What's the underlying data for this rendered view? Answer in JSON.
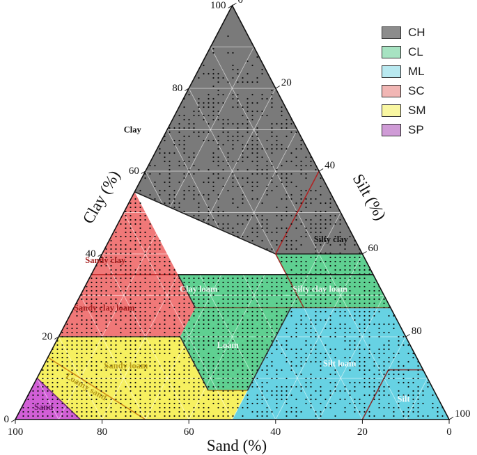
{
  "chart_data": {
    "type": "ternary",
    "axes": {
      "bottom": {
        "label": "Sand (%)",
        "ticks": [
          "100",
          "80",
          "60",
          "40",
          "20",
          "0"
        ]
      },
      "left": {
        "label": "Clay (%)",
        "ticks": [
          "0",
          "20",
          "40",
          "60",
          "80",
          "100"
        ]
      },
      "right": {
        "label": "Silt (%)",
        "ticks": [
          "0",
          "20",
          "40",
          "60",
          "80",
          "100"
        ]
      }
    },
    "grid": true,
    "legend_position": "top-right",
    "legend": [
      {
        "label": "CH",
        "color": "#8c8c8c"
      },
      {
        "label": "CL",
        "color": "#a7e3c2"
      },
      {
        "label": "ML",
        "color": "#b9e9f0"
      },
      {
        "label": "SC",
        "color": "#f1b6b4"
      },
      {
        "label": "SM",
        "color": "#f9f7a2"
      },
      {
        "label": "SP",
        "color": "#cf9bd6"
      }
    ],
    "regions": [
      {
        "name": "Clay",
        "group": "CH",
        "color": "#7a7a7a",
        "vertices": [
          [
            0,
            100,
            0
          ],
          [
            45,
            55,
            0
          ],
          [
            20,
            40,
            40
          ],
          [
            0,
            60,
            40
          ]
        ]
      },
      {
        "name": "Silty clay",
        "group": "CH",
        "color": "#7a7a7a",
        "vertices": [
          [
            0,
            60,
            40
          ],
          [
            20,
            40,
            40
          ],
          [
            0,
            40,
            60
          ]
        ]
      },
      {
        "name": "Sandy clay",
        "group": "SC",
        "color": "#f07878",
        "vertices": [
          [
            45,
            55,
            0
          ],
          [
            65,
            35,
            0
          ],
          [
            45,
            35,
            20
          ]
        ]
      },
      {
        "name": "Sandy clay loam",
        "group": "SC",
        "color": "#f07878",
        "vertices": [
          [
            65,
            35,
            0
          ],
          [
            80,
            20,
            0
          ],
          [
            52,
            20,
            28
          ],
          [
            45,
            27,
            28
          ],
          [
            45,
            35,
            20
          ]
        ]
      },
      {
        "name": "Clay loam",
        "group": "CL",
        "color": "#5fd091",
        "vertices": [
          [
            45,
            35,
            20
          ],
          [
            45,
            27,
            28
          ],
          [
            20,
            27,
            53
          ],
          [
            20,
            35,
            45
          ]
        ]
      },
      {
        "name": "Silty clay loam",
        "group": "CL",
        "color": "#5fd091",
        "vertices": [
          [
            20,
            35,
            45
          ],
          [
            20,
            27,
            53
          ],
          [
            0,
            27,
            73
          ],
          [
            0,
            35,
            65
          ],
          [
            0,
            40,
            60
          ],
          [
            20,
            40,
            40
          ]
        ]
      },
      {
        "name": "Loam",
        "group": "CL",
        "color": "#5fd091",
        "vertices": [
          [
            45,
            27,
            28
          ],
          [
            52,
            20,
            28
          ],
          [
            52,
            7,
            41
          ],
          [
            43,
            7,
            50
          ],
          [
            23,
            27,
            50
          ]
        ]
      },
      {
        "name": "Silt loam",
        "group": "ML",
        "color": "#67d2e3",
        "vertices": [
          [
            23,
            27,
            50
          ],
          [
            43,
            7,
            50
          ],
          [
            50,
            0,
            50
          ],
          [
            0,
            0,
            100
          ],
          [
            0,
            27,
            73
          ]
        ]
      },
      {
        "name": "Silt",
        "group": "ML",
        "color": "#67d2e3",
        "vertices": [
          [
            20,
            0,
            80
          ],
          [
            0,
            0,
            100
          ],
          [
            0,
            12,
            88
          ],
          [
            8,
            12,
            80
          ]
        ]
      },
      {
        "name": "Sandy loam",
        "group": "SM",
        "color": "#f6f060",
        "vertices": [
          [
            80,
            20,
            0
          ],
          [
            85,
            15,
            0
          ],
          [
            70,
            0,
            30
          ],
          [
            50,
            0,
            50
          ],
          [
            43,
            7,
            50
          ],
          [
            52,
            7,
            41
          ],
          [
            52,
            20,
            28
          ]
        ]
      },
      {
        "name": "Loamy sand",
        "group": "SM",
        "color": "#f6f060",
        "vertices": [
          [
            85,
            15,
            0
          ],
          [
            90,
            10,
            0
          ],
          [
            85,
            0,
            15
          ],
          [
            70,
            0,
            30
          ]
        ]
      },
      {
        "name": "Sand",
        "group": "SP",
        "color": "#d15fd6",
        "vertices": [
          [
            90,
            10,
            0
          ],
          [
            100,
            0,
            0
          ],
          [
            85,
            0,
            15
          ]
        ]
      }
    ],
    "region_labels": [
      {
        "text": "Clay",
        "sand": 38,
        "clay": 70,
        "color": "#111111"
      },
      {
        "text": "Silty clay",
        "sand": 5.5,
        "clay": 43.5,
        "color": "#111111"
      },
      {
        "text": "Sandy clay",
        "sand": 60,
        "clay": 38.5,
        "color": "#a51f1f"
      },
      {
        "text": "Sandy clay loam",
        "sand": 66,
        "clay": 27,
        "color": "#a51f1f"
      },
      {
        "text": "Clay loam",
        "sand": 42,
        "clay": 31.5,
        "color": "#e8f6ee"
      },
      {
        "text": "Silty clay loam",
        "sand": 14,
        "clay": 31.5,
        "color": "#e8f6ee"
      },
      {
        "text": "Loam",
        "sand": 42,
        "clay": 18,
        "color": "#e8f6ee"
      },
      {
        "text": "Silt loam",
        "sand": 18.5,
        "clay": 13.5,
        "color": "#eef9fb"
      },
      {
        "text": "Silt",
        "sand": 8,
        "clay": 5,
        "color": "#eef9fb"
      },
      {
        "text": "Sandy loam",
        "sand": 68,
        "clay": 13,
        "color": "#b79a17"
      },
      {
        "text": "Loamy sand",
        "sand": 80,
        "clay": 8,
        "color": "#b79a17",
        "rotate": true
      },
      {
        "text": "Sand",
        "sand": 92,
        "clay": 3,
        "color": "#6a1a6a"
      }
    ]
  }
}
